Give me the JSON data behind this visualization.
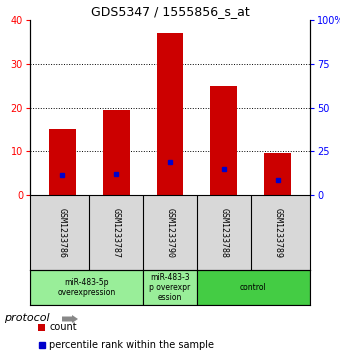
{
  "title": "GDS5347 / 1555856_s_at",
  "samples": [
    "GSM1233786",
    "GSM1233787",
    "GSM1233790",
    "GSM1233788",
    "GSM1233789"
  ],
  "counts": [
    15,
    19.5,
    37,
    25,
    9.5
  ],
  "percentile_ranks": [
    11.5,
    12,
    19,
    15,
    8.5
  ],
  "ylim_left": [
    0,
    40
  ],
  "ylim_right": [
    0,
    100
  ],
  "yticks_left": [
    0,
    10,
    20,
    30,
    40
  ],
  "yticks_right": [
    0,
    25,
    50,
    75,
    100
  ],
  "ytick_labels_right": [
    "0",
    "25",
    "50",
    "75",
    "100%"
  ],
  "bar_color": "#cc0000",
  "marker_color": "#0000cc",
  "group_data": [
    {
      "start": 0,
      "end": 2,
      "label": "miR-483-5p\noverexpression",
      "color": "#99ee99"
    },
    {
      "start": 2,
      "end": 3,
      "label": "miR-483-3\np overexpr\nession",
      "color": "#99ee99"
    },
    {
      "start": 3,
      "end": 5,
      "label": "control",
      "color": "#44cc44"
    }
  ],
  "protocol_label": "protocol",
  "legend_count_label": "count",
  "legend_prank_label": "percentile rank within the sample",
  "sample_bg_color": "#d8d8d8",
  "plot_bg": "#ffffff",
  "dotted_yticks": [
    10,
    20,
    30
  ]
}
